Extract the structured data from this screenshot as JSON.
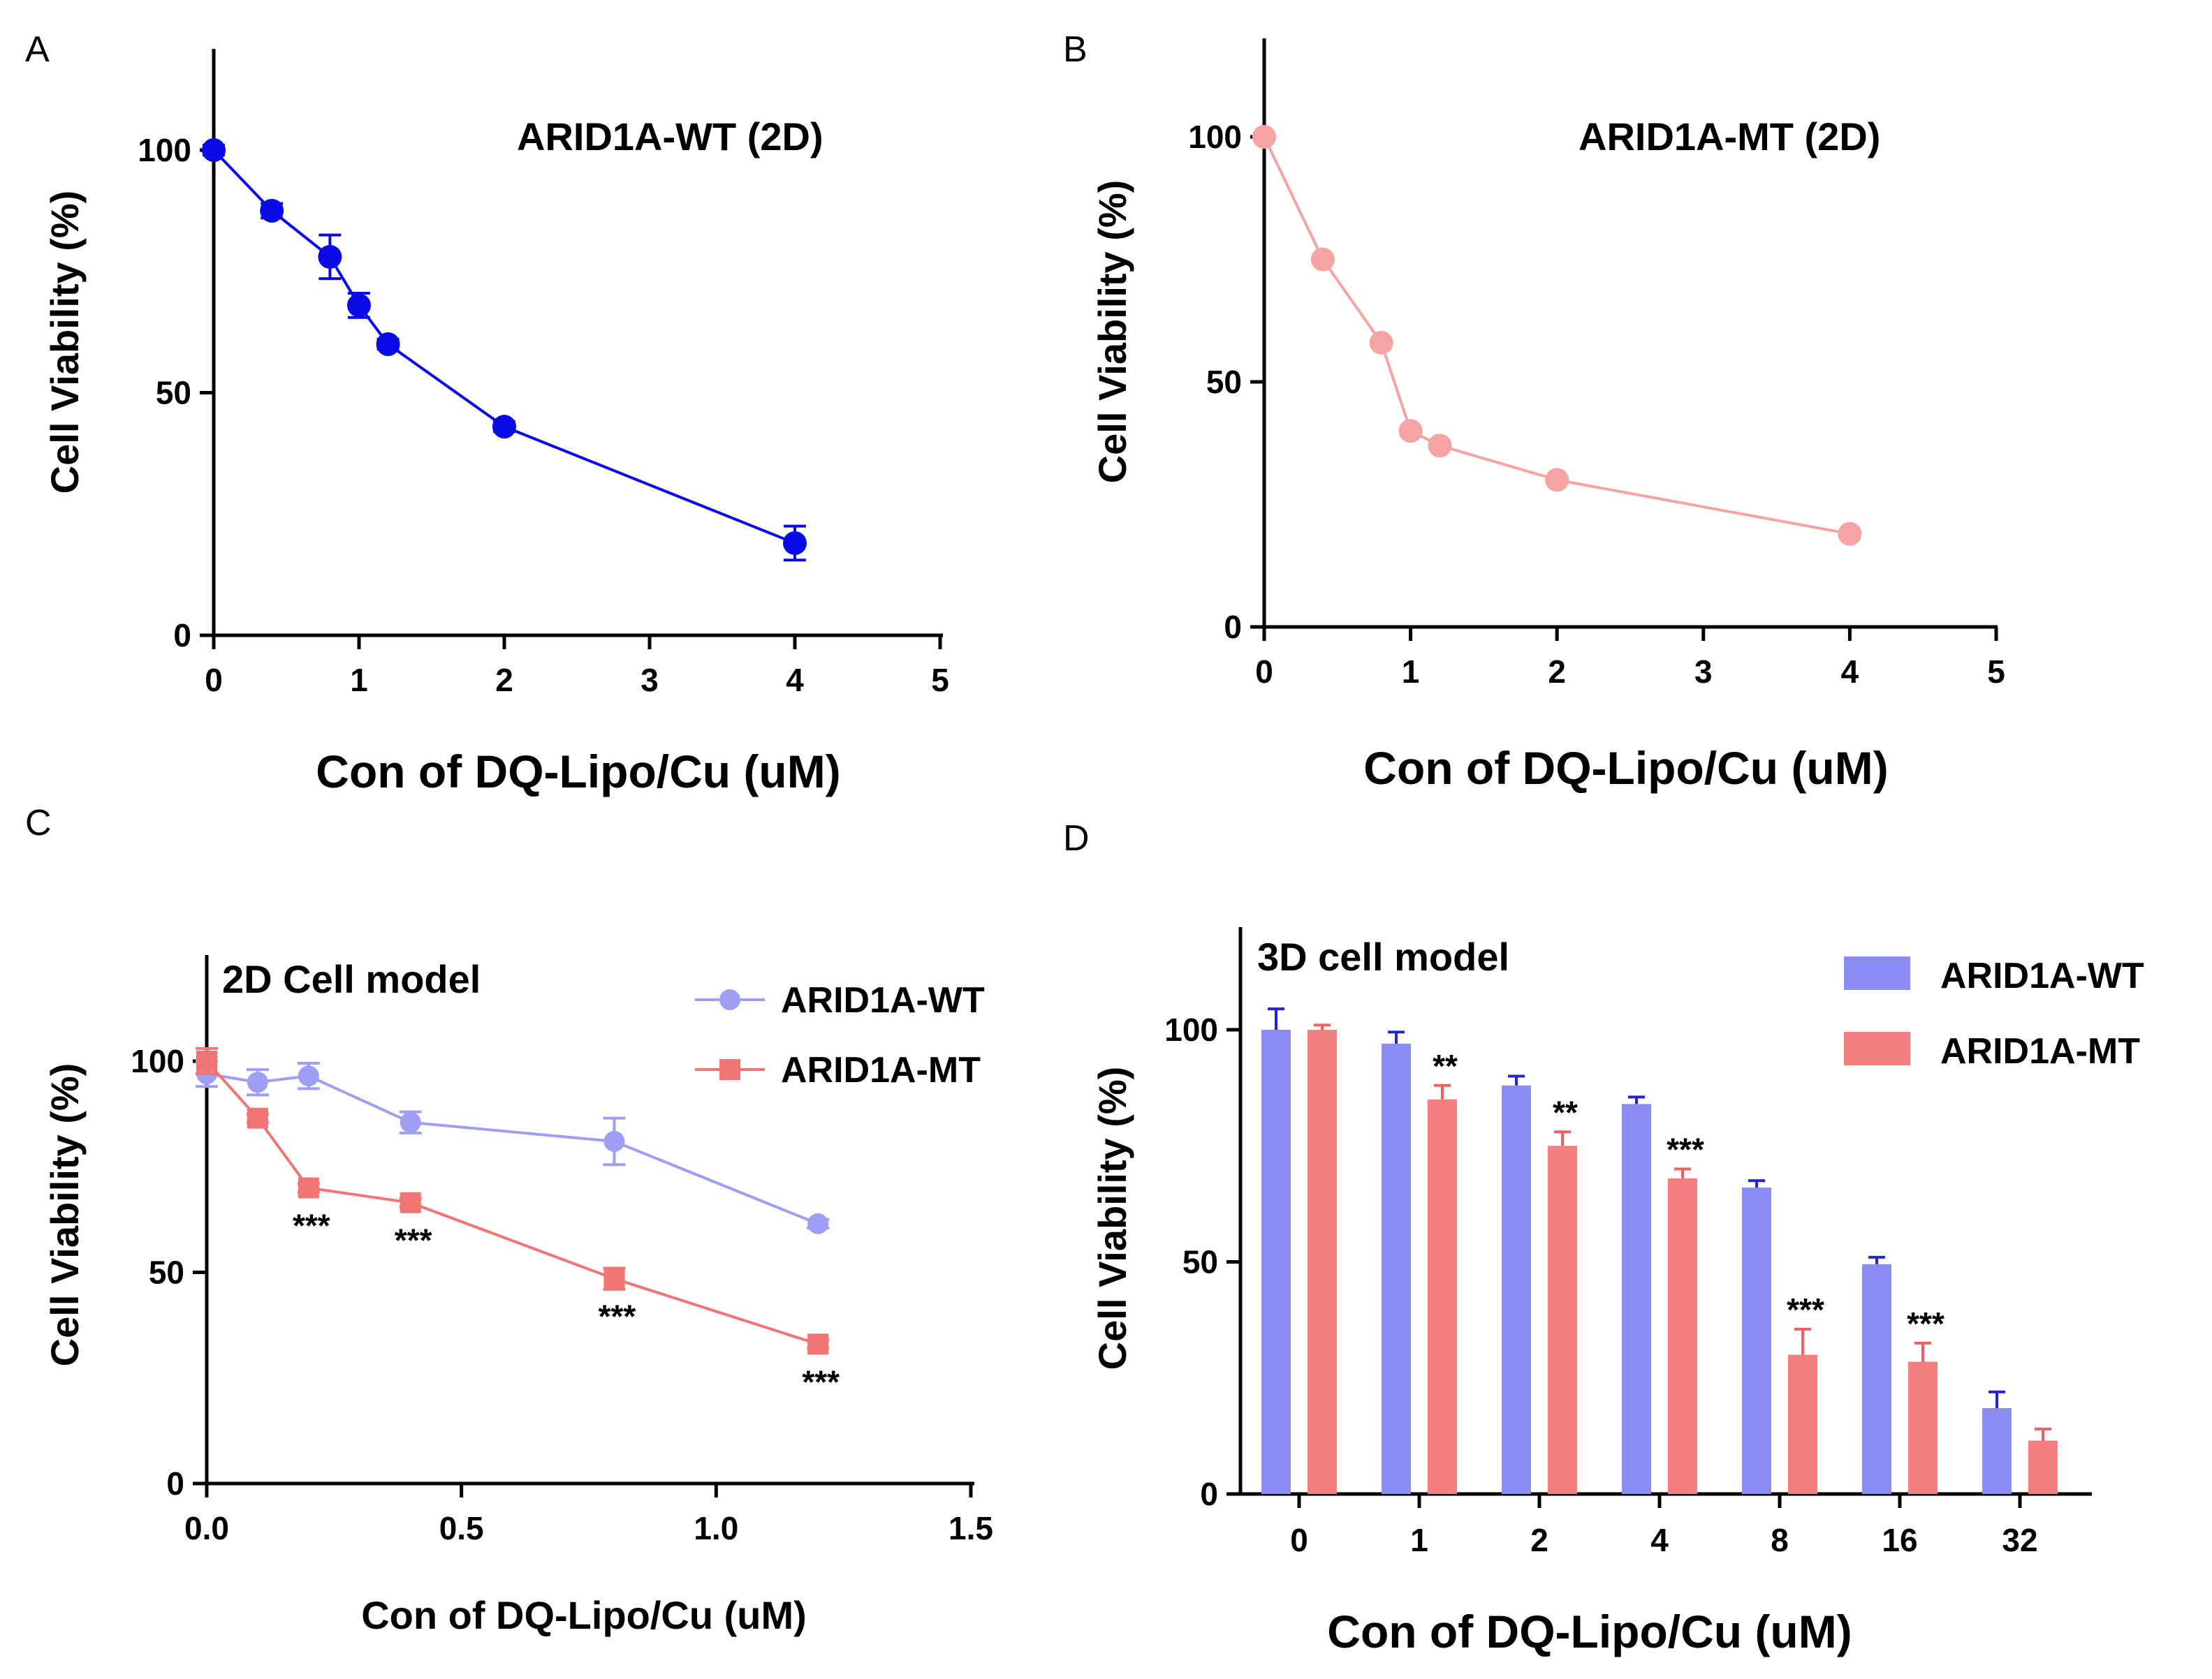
{
  "colors": {
    "a_wt": "#0a0ae6",
    "b_mt": "#f5a3a3",
    "c_wt": "#9e9ef5",
    "c_mt": "#f27575",
    "d_wt": "#8c8cf5",
    "d_wt_err": "#2222dd",
    "d_mt": "#f58080",
    "d_mt_err": "#f06060"
  },
  "chart_data": [
    {
      "panel": "A",
      "type": "line",
      "title": "ARID1A-WT (2D)",
      "xlabel": "Con of DQ-Lipo/Cu (uM)",
      "ylabel": "Cell Viability (%)",
      "xlim": [
        0,
        5
      ],
      "ylim": [
        0,
        120
      ],
      "xticks": [
        "0",
        "1",
        "2",
        "3",
        "4",
        "5"
      ],
      "yticks": [
        "0",
        "50",
        "100"
      ],
      "series": [
        {
          "name": "ARID1A-WT",
          "x": [
            0,
            0.4,
            0.8,
            1.0,
            1.2,
            2.0,
            4.0
          ],
          "y": [
            100,
            87.5,
            78,
            68,
            60,
            43,
            19
          ],
          "err": [
            1,
            1.5,
            4.5,
            2.5,
            1,
            1,
            3.5
          ]
        }
      ]
    },
    {
      "panel": "B",
      "type": "line",
      "title": "ARID1A-MT (2D)",
      "xlabel": "Con of DQ-Lipo/Cu (uM)",
      "ylabel": "Cell Viability (%)",
      "xlim": [
        0,
        5
      ],
      "ylim": [
        0,
        120
      ],
      "xticks": [
        "0",
        "1",
        "2",
        "3",
        "4",
        "5"
      ],
      "yticks": [
        "0",
        "50",
        "100"
      ],
      "series": [
        {
          "name": "ARID1A-MT",
          "x": [
            0,
            0.4,
            0.8,
            1.0,
            1.2,
            2.0,
            4.0
          ],
          "y": [
            100,
            75,
            58,
            40,
            37,
            30,
            19
          ]
        }
      ]
    },
    {
      "panel": "C",
      "type": "line",
      "title": "2D Cell model",
      "xlabel": "Con of DQ-Lipo/Cu (uM)",
      "ylabel": "Cell Viability (%)",
      "xlim": [
        0,
        1.5
      ],
      "ylim": [
        0,
        120
      ],
      "xticks": [
        "0.0",
        "0.5",
        "1.0",
        "1.5"
      ],
      "yticks": [
        "0",
        "50",
        "100"
      ],
      "legend_position": "top-right",
      "series": [
        {
          "name": "ARID1A-WT",
          "x": [
            0,
            0.1,
            0.2,
            0.4,
            0.8,
            1.2
          ],
          "y": [
            97,
            95,
            96.5,
            85.5,
            81,
            61.5
          ],
          "err": [
            3,
            3,
            3,
            2.5,
            5.5,
            1
          ]
        },
        {
          "name": "ARID1A-MT",
          "x": [
            0,
            0.1,
            0.2,
            0.4,
            0.8,
            1.2
          ],
          "y": [
            100,
            86.5,
            70,
            66.5,
            48.5,
            33
          ],
          "err": [
            3,
            1,
            1,
            1,
            2.5,
            1
          ],
          "significance": [
            "",
            "",
            "***",
            "***",
            "***",
            "***"
          ]
        }
      ]
    },
    {
      "panel": "D",
      "type": "bar",
      "title": "3D cell model",
      "xlabel": "Con of DQ-Lipo/Cu (uM)",
      "ylabel": "Cell Viability (%)",
      "ylim": [
        0,
        120
      ],
      "yticks": [
        "0",
        "50",
        "100"
      ],
      "legend_position": "top-right",
      "categories": [
        "0",
        "1",
        "2",
        "4",
        "8",
        "16",
        "32"
      ],
      "series": [
        {
          "name": "ARID1A-WT",
          "values": [
            100,
            97,
            88,
            84,
            66,
            49.5,
            18.5
          ],
          "err": [
            4.5,
            2.5,
            2,
            1.5,
            1.5,
            1.5,
            3.5
          ]
        },
        {
          "name": "ARID1A-MT",
          "values": [
            100,
            85,
            75,
            68,
            30,
            28.5,
            11.5
          ],
          "err": [
            1,
            3,
            3,
            2,
            5.5,
            4,
            2.5
          ],
          "significance": [
            "",
            "**",
            "**",
            "***",
            "***",
            "***",
            ""
          ]
        }
      ]
    }
  ]
}
